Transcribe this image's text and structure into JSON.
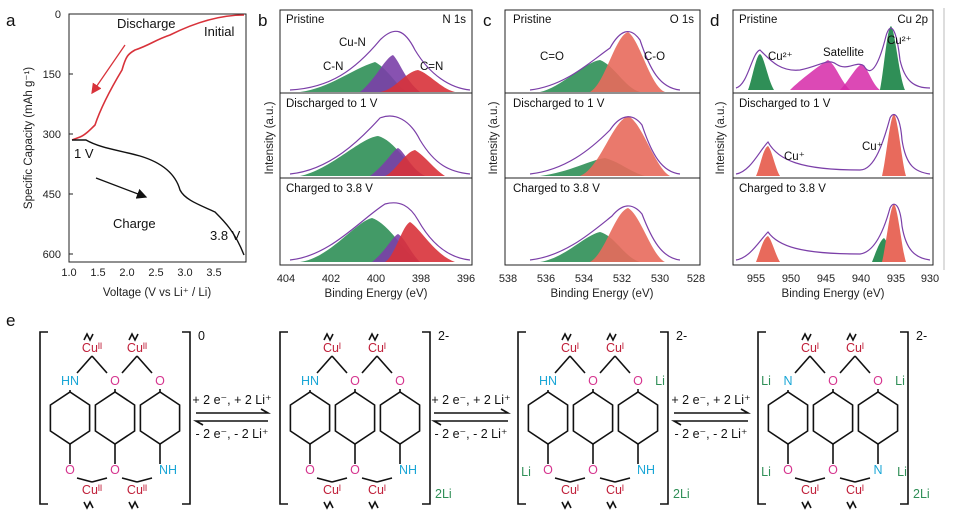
{
  "panels": {
    "a": {
      "letter": "a",
      "xlabel": "Voltage (V vs Li⁺ / Li)",
      "ylabel": "Specific Capacity (mAh g⁻¹)",
      "xticks": [
        "1.0",
        "1.5",
        "2.0",
        "2.5",
        "3.0",
        "3.5"
      ],
      "yticks": [
        "0",
        "150",
        "300",
        "450",
        "600"
      ],
      "ann": {
        "discharge": "Discharge",
        "initial": "Initial",
        "v1": "1 V",
        "charge": "Charge",
        "v38": "3.8 V"
      }
    },
    "b": {
      "letter": "b",
      "element": "N 1s",
      "rows": [
        "Pristine",
        "Discharged to 1 V",
        "Charged to 3.8 V"
      ],
      "peaks": {
        "cn": "C-N",
        "cun": "Cu-N",
        "ceqn": "C=N"
      },
      "xlabel": "Binding Energy (eV)",
      "xticks": [
        "404",
        "402",
        "400",
        "398",
        "396"
      ],
      "ylabel": "Intensity (a.u.)"
    },
    "c": {
      "letter": "c",
      "element": "O 1s",
      "rows": [
        "Pristine",
        "Discharged to 1 V",
        "Charged to 3.8 V"
      ],
      "peaks": {
        "ceqo": "C=O",
        "co": "C-O"
      },
      "xlabel": "Binding Energy (eV)",
      "xticks": [
        "538",
        "536",
        "534",
        "532",
        "530",
        "528"
      ],
      "ylabel": "Intensity (a.u.)"
    },
    "d": {
      "letter": "d",
      "element": "Cu 2p",
      "rows": [
        "Pristine",
        "Discharged to 1 V",
        "Charged to 3.8 V"
      ],
      "peaks": {
        "cu2a": "Cu²⁺",
        "sat": "Satellite",
        "cu2b": "Cu²⁺",
        "cu1a": "Cu⁺",
        "cu1b": "Cu⁺"
      },
      "xlabel": "Binding Energy (eV)",
      "xticks": [
        "955",
        "950",
        "945",
        "940",
        "935",
        "930"
      ],
      "ylabel": "Intensity (a.u.)"
    },
    "e": {
      "letter": "e",
      "charges": [
        "0",
        "2-",
        "2-",
        "2-"
      ],
      "counter": "2Li",
      "arrows": [
        {
          "fwd": "+ 2 e⁻, + 2 Li⁺",
          "rev": "- 2 e⁻, - 2 Li⁺"
        },
        {
          "fwd": "+ 2 e⁻, + 2 Li⁺",
          "rev": "- 2 e⁻, - 2 Li⁺"
        },
        {
          "fwd": "+ 2 e⁻, + 2 Li⁺",
          "rev": "- 2 e⁻, - 2 Li⁺"
        }
      ],
      "atoms": {
        "hn": "HN",
        "nh": "NH",
        "o": "O",
        "n": "N",
        "li": "Li",
        "cu2": "Cuᴵᴵ",
        "cu1": "Cuᴵ"
      }
    }
  },
  "colors": {
    "red": "#d8323a",
    "purple": "#7b3fa8",
    "green": "#2f8f57",
    "magenta": "#d629a8",
    "cyan": "#1aa6d6",
    "pink": "#d6358f",
    "cuRed": "#c0203a"
  }
}
